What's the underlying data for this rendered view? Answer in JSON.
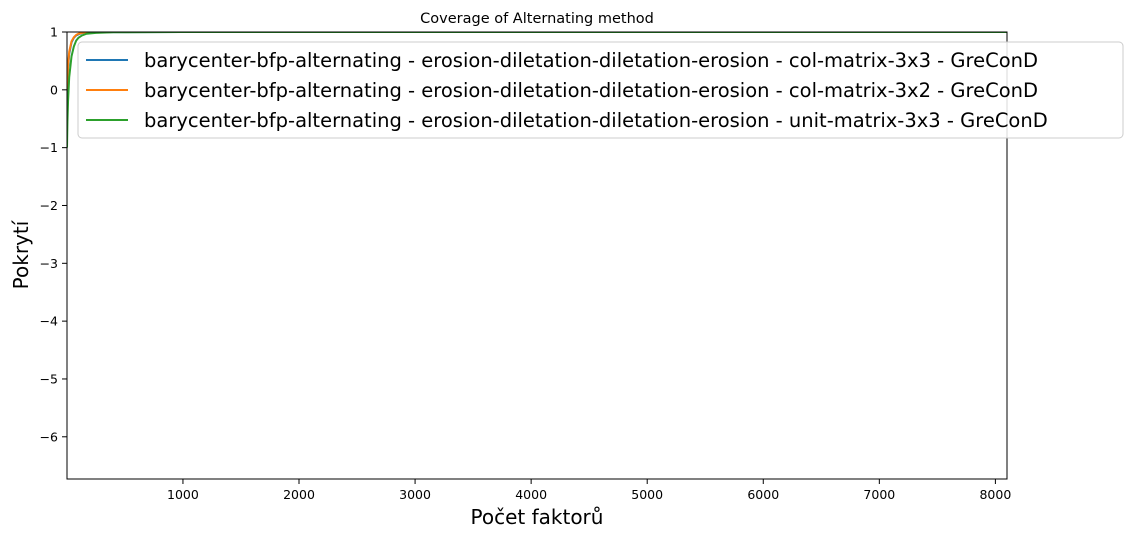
{
  "chart_data": {
    "type": "line",
    "title": "Coverage of Alternating method",
    "xlabel": "Počet faktorů",
    "ylabel": "Pokrytí",
    "xlim": [
      1,
      8100
    ],
    "ylim": [
      -6.73,
      1.0
    ],
    "xticks": [
      1000,
      2000,
      3000,
      4000,
      5000,
      6000,
      7000,
      8000
    ],
    "xtick_labels": [
      "1000",
      "2000",
      "3000",
      "4000",
      "5000",
      "6000",
      "7000",
      "8000"
    ],
    "yticks": [
      1,
      0,
      -1,
      -2,
      -3,
      -4,
      -5,
      -6
    ],
    "ytick_labels": [
      "1",
      "0",
      "−1",
      "−2",
      "−3",
      "−4",
      "−5",
      "−6"
    ],
    "grid": false,
    "legend_position": "top-right",
    "series": [
      {
        "name": "barycenter-bfp-alternating - erosion-diletation-diletation-erosion - col-matrix-3x3 - GreConD",
        "color": "#1f77b4",
        "x": [
          1,
          5,
          10,
          20,
          40,
          60,
          80,
          100,
          130,
          170,
          250,
          400,
          1000,
          3000,
          6000,
          8100
        ],
        "y": [
          -0.2,
          0.12,
          0.36,
          0.62,
          0.82,
          0.9,
          0.94,
          0.96,
          0.98,
          0.99,
          0.995,
          0.998,
          1.0,
          1.0,
          1.0,
          1.0
        ]
      },
      {
        "name": "barycenter-bfp-alternating - erosion-diletation-diletation-erosion - col-matrix-3x2 - GreConD",
        "color": "#ff7f0e",
        "x": [
          1,
          5,
          10,
          20,
          40,
          60,
          80,
          100,
          130,
          170,
          250,
          400,
          1000,
          3000,
          6000,
          8100
        ],
        "y": [
          -0.1,
          0.2,
          0.42,
          0.66,
          0.84,
          0.91,
          0.95,
          0.97,
          0.985,
          0.993,
          0.997,
          0.999,
          1.0,
          1.0,
          1.0,
          1.0
        ]
      },
      {
        "name": "barycenter-bfp-alternating - erosion-diletation-diletation-erosion - unit-matrix-3x3 - GreConD",
        "color": "#2ca02c",
        "x": [
          1,
          5,
          10,
          20,
          40,
          60,
          80,
          100,
          130,
          170,
          250,
          400,
          1000,
          3000,
          6000,
          8100
        ],
        "y": [
          -1.0,
          -0.55,
          -0.2,
          0.22,
          0.58,
          0.75,
          0.85,
          0.9,
          0.94,
          0.97,
          0.985,
          0.995,
          1.0,
          1.0,
          1.0,
          1.0
        ]
      }
    ]
  }
}
